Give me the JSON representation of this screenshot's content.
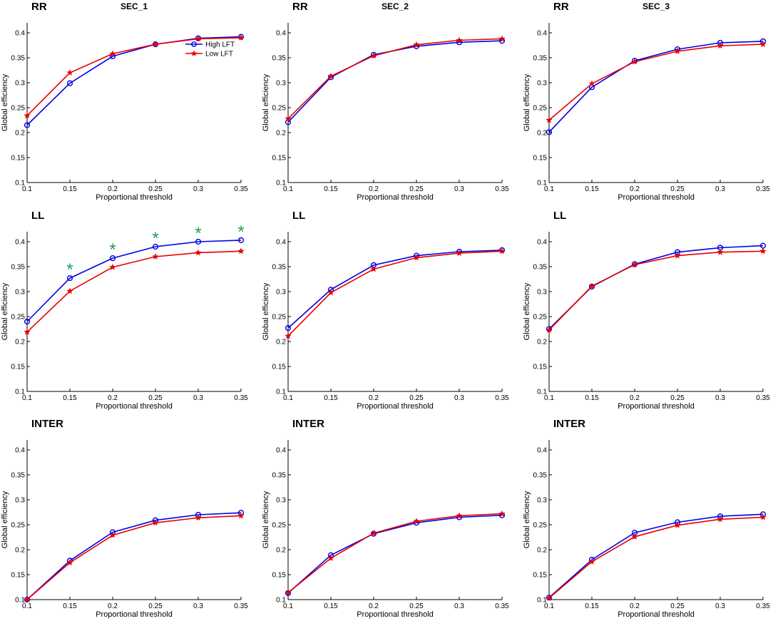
{
  "figure": {
    "legend": [
      {
        "name": "High LFT",
        "color": "#0000e6",
        "marker": "circle"
      },
      {
        "name": "Low LFT",
        "color": "#e60000",
        "marker": "star"
      }
    ],
    "significance_mark": "*",
    "significance_color": "#1aa052"
  },
  "chart_data": [
    {
      "type": "line",
      "row": 0,
      "col": 0,
      "row_label": "RR",
      "title": "SEC_1",
      "xlabel": "Proportional threshold",
      "ylabel": "Global efficiency",
      "x": [
        0.1,
        0.15,
        0.2,
        0.25,
        0.3,
        0.35
      ],
      "x_ticks": [
        "0.1",
        "0.15",
        "0.2",
        "0.25",
        "0.3",
        "0.35"
      ],
      "ylim": [
        0.1,
        0.42
      ],
      "y_ticks": [
        "0.1",
        "0.15",
        "0.2",
        "0.25",
        "0.3",
        "0.35",
        "0.4"
      ],
      "legend_shown": true,
      "legend_position": "top-right",
      "series": [
        {
          "name": "High LFT",
          "values": [
            0.215,
            0.299,
            0.353,
            0.377,
            0.389,
            0.392
          ]
        },
        {
          "name": "Low LFT",
          "values": [
            0.234,
            0.32,
            0.358,
            0.377,
            0.388,
            0.39
          ]
        }
      ],
      "significant": []
    },
    {
      "type": "line",
      "row": 0,
      "col": 1,
      "row_label": "RR",
      "title": "SEC_2",
      "xlabel": "Proportional threshold",
      "ylabel": "Global efficiency",
      "x": [
        0.1,
        0.15,
        0.2,
        0.25,
        0.3,
        0.35
      ],
      "x_ticks": [
        "0.1",
        "0.15",
        "0.2",
        "0.25",
        "0.3",
        "0.35"
      ],
      "ylim": [
        0.1,
        0.42
      ],
      "y_ticks": [
        "0.1",
        "0.15",
        "0.2",
        "0.25",
        "0.3",
        "0.35",
        "0.4"
      ],
      "legend_shown": false,
      "series": [
        {
          "name": "High LFT",
          "values": [
            0.221,
            0.311,
            0.356,
            0.373,
            0.381,
            0.384
          ]
        },
        {
          "name": "Low LFT",
          "values": [
            0.228,
            0.313,
            0.354,
            0.376,
            0.385,
            0.388
          ]
        }
      ],
      "significant": []
    },
    {
      "type": "line",
      "row": 0,
      "col": 2,
      "row_label": "RR",
      "title": "SEC_3",
      "xlabel": "Proportional threshold",
      "ylabel": "Global efficiency",
      "x": [
        0.1,
        0.15,
        0.2,
        0.25,
        0.3,
        0.35
      ],
      "x_ticks": [
        "0.1",
        "0.15",
        "0.2",
        "0.25",
        "0.3",
        "0.35"
      ],
      "ylim": [
        0.1,
        0.42
      ],
      "y_ticks": [
        "0.1",
        "0.15",
        "0.2",
        "0.25",
        "0.3",
        "0.35",
        "0.4"
      ],
      "legend_shown": false,
      "series": [
        {
          "name": "High LFT",
          "values": [
            0.201,
            0.291,
            0.344,
            0.367,
            0.38,
            0.383
          ]
        },
        {
          "name": "Low LFT",
          "values": [
            0.225,
            0.298,
            0.342,
            0.363,
            0.374,
            0.377
          ]
        }
      ],
      "significant": []
    },
    {
      "type": "line",
      "row": 1,
      "col": 0,
      "row_label": "LL",
      "title": "",
      "xlabel": "Proportional threshold",
      "ylabel": "Global efficiency",
      "x": [
        0.1,
        0.15,
        0.2,
        0.25,
        0.3,
        0.35
      ],
      "x_ticks": [
        "0.1",
        "0.15",
        "0.2",
        "0.25",
        "0.3",
        "0.35"
      ],
      "ylim": [
        0.1,
        0.42
      ],
      "y_ticks": [
        "0.1",
        "0.15",
        "0.2",
        "0.25",
        "0.3",
        "0.35",
        "0.4"
      ],
      "legend_shown": false,
      "series": [
        {
          "name": "High LFT",
          "values": [
            0.24,
            0.327,
            0.367,
            0.39,
            0.4,
            0.403
          ]
        },
        {
          "name": "Low LFT",
          "values": [
            0.219,
            0.301,
            0.349,
            0.37,
            0.378,
            0.381
          ]
        }
      ],
      "significant": [
        0.15,
        0.2,
        0.25,
        0.3,
        0.35
      ]
    },
    {
      "type": "line",
      "row": 1,
      "col": 1,
      "row_label": "LL",
      "title": "",
      "xlabel": "Proportional threshold",
      "ylabel": "Global efficiency",
      "x": [
        0.1,
        0.15,
        0.2,
        0.25,
        0.3,
        0.35
      ],
      "x_ticks": [
        "0.1",
        "0.15",
        "0.2",
        "0.25",
        "0.3",
        "0.35"
      ],
      "ylim": [
        0.1,
        0.42
      ],
      "y_ticks": [
        "0.1",
        "0.15",
        "0.2",
        "0.25",
        "0.3",
        "0.35",
        "0.4"
      ],
      "legend_shown": false,
      "series": [
        {
          "name": "High LFT",
          "values": [
            0.227,
            0.304,
            0.353,
            0.372,
            0.38,
            0.383
          ]
        },
        {
          "name": "Low LFT",
          "values": [
            0.211,
            0.298,
            0.345,
            0.368,
            0.377,
            0.381
          ]
        }
      ],
      "significant": []
    },
    {
      "type": "line",
      "row": 1,
      "col": 2,
      "row_label": "LL",
      "title": "",
      "xlabel": "Proportional threshold",
      "ylabel": "Global efficiency",
      "x": [
        0.1,
        0.15,
        0.2,
        0.25,
        0.3,
        0.35
      ],
      "x_ticks": [
        "0.1",
        "0.15",
        "0.2",
        "0.25",
        "0.3",
        "0.35"
      ],
      "ylim": [
        0.1,
        0.42
      ],
      "y_ticks": [
        "0.1",
        "0.15",
        "0.2",
        "0.25",
        "0.3",
        "0.35",
        "0.4"
      ],
      "legend_shown": false,
      "series": [
        {
          "name": "High LFT",
          "values": [
            0.225,
            0.31,
            0.355,
            0.379,
            0.388,
            0.392
          ]
        },
        {
          "name": "Low LFT",
          "values": [
            0.223,
            0.311,
            0.354,
            0.372,
            0.379,
            0.381
          ]
        }
      ],
      "significant": []
    },
    {
      "type": "line",
      "row": 2,
      "col": 0,
      "row_label": "INTER",
      "title": "",
      "xlabel": "Proportional threshold",
      "ylabel": "Global efficiency",
      "x": [
        0.1,
        0.15,
        0.2,
        0.25,
        0.3,
        0.35
      ],
      "x_ticks": [
        "0.1",
        "0.15",
        "0.2",
        "0.25",
        "0.3",
        "0.35"
      ],
      "ylim": [
        0.1,
        0.42
      ],
      "y_ticks": [
        "0.1",
        "0.15",
        "0.2",
        "0.25",
        "0.3",
        "0.35",
        "0.4"
      ],
      "legend_shown": false,
      "series": [
        {
          "name": "High LFT",
          "values": [
            0.1,
            0.178,
            0.235,
            0.259,
            0.27,
            0.274
          ]
        },
        {
          "name": "Low LFT",
          "values": [
            0.1,
            0.174,
            0.229,
            0.254,
            0.264,
            0.268
          ]
        }
      ],
      "significant": []
    },
    {
      "type": "line",
      "row": 2,
      "col": 1,
      "row_label": "INTER",
      "title": "",
      "xlabel": "Proportional threshold",
      "ylabel": "Global efficiency",
      "x": [
        0.1,
        0.15,
        0.2,
        0.25,
        0.3,
        0.35
      ],
      "x_ticks": [
        "0.1",
        "0.15",
        "0.2",
        "0.25",
        "0.3",
        "0.35"
      ],
      "ylim": [
        0.1,
        0.42
      ],
      "y_ticks": [
        "0.1",
        "0.15",
        "0.2",
        "0.25",
        "0.3",
        "0.35",
        "0.4"
      ],
      "legend_shown": false,
      "series": [
        {
          "name": "High LFT",
          "values": [
            0.113,
            0.189,
            0.232,
            0.254,
            0.265,
            0.269
          ]
        },
        {
          "name": "Low LFT",
          "values": [
            0.114,
            0.183,
            0.233,
            0.257,
            0.268,
            0.272
          ]
        }
      ],
      "significant": []
    },
    {
      "type": "line",
      "row": 2,
      "col": 2,
      "row_label": "INTER",
      "title": "",
      "xlabel": "Proportional threshold",
      "ylabel": "Global efficiency",
      "x": [
        0.1,
        0.15,
        0.2,
        0.25,
        0.3,
        0.35
      ],
      "x_ticks": [
        "0.1",
        "0.15",
        "0.2",
        "0.25",
        "0.3",
        "0.35"
      ],
      "ylim": [
        0.1,
        0.42
      ],
      "y_ticks": [
        "0.1",
        "0.15",
        "0.2",
        "0.25",
        "0.3",
        "0.35",
        "0.4"
      ],
      "legend_shown": false,
      "series": [
        {
          "name": "High LFT",
          "values": [
            0.104,
            0.18,
            0.234,
            0.255,
            0.267,
            0.271
          ]
        },
        {
          "name": "Low LFT",
          "values": [
            0.103,
            0.176,
            0.226,
            0.249,
            0.261,
            0.265
          ]
        }
      ],
      "significant": []
    }
  ]
}
